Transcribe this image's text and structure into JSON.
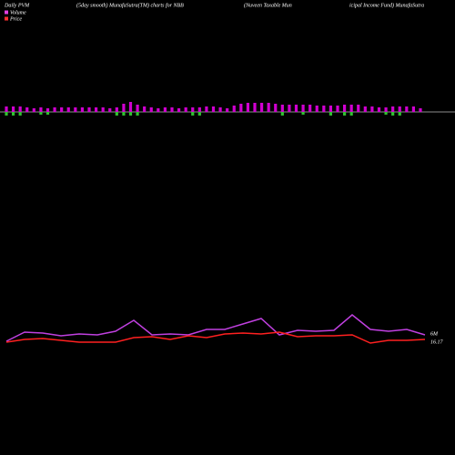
{
  "chart_data": {
    "type": "volume-price",
    "title_parts": [
      "Daily PVM",
      "(5day smooth) MunafaSutra(TM) charts for NBB",
      "(Nuveen Taxable  Mun",
      "icipal Income  Fund) MunafaSutra"
    ],
    "legend": [
      {
        "name": "Volume",
        "color": "#e040e0"
      },
      {
        "name": "Price",
        "color": "#ff3030"
      }
    ],
    "bars": {
      "up_color": "#d000d0",
      "down_color": "#30c030",
      "up": [
        6,
        6,
        6,
        5,
        4,
        5,
        4,
        5,
        5,
        5,
        5,
        5,
        5,
        5,
        5,
        4,
        5,
        9,
        11,
        8,
        6,
        5,
        4,
        5,
        5,
        4,
        5,
        5,
        5,
        6,
        6,
        5,
        4,
        7,
        9,
        10,
        10,
        10,
        10,
        9,
        8,
        8,
        8,
        8,
        8,
        7,
        7,
        7,
        7,
        8,
        8,
        8,
        6,
        6,
        5,
        5,
        6,
        6,
        6,
        6,
        4
      ],
      "down": [
        4,
        4,
        4,
        0,
        0,
        3,
        3,
        0,
        0,
        0,
        0,
        0,
        0,
        0,
        0,
        0,
        4,
        4,
        4,
        4,
        0,
        0,
        0,
        0,
        0,
        0,
        0,
        4,
        4,
        0,
        0,
        0,
        0,
        0,
        0,
        0,
        0,
        0,
        0,
        0,
        4,
        0,
        0,
        3,
        0,
        0,
        0,
        4,
        0,
        4,
        4,
        0,
        0,
        0,
        0,
        3,
        4,
        4,
        0,
        0,
        0
      ]
    },
    "series": [
      {
        "name": "Volume",
        "color": "#c040e0",
        "values": [
          5,
          15,
          14,
          11,
          13,
          12,
          16,
          28,
          12,
          13,
          12,
          18,
          18,
          24,
          30,
          12,
          17,
          16,
          17,
          34,
          18,
          16,
          18,
          12
        ],
        "label": "6M"
      },
      {
        "name": "Price",
        "color": "#ff2020",
        "values": [
          4,
          7,
          8,
          6,
          4,
          4,
          4,
          9,
          10,
          7,
          11,
          9,
          13,
          14,
          13,
          15,
          10,
          11,
          11,
          12,
          3,
          6,
          6,
          7
        ],
        "label": "16.17"
      }
    ]
  }
}
